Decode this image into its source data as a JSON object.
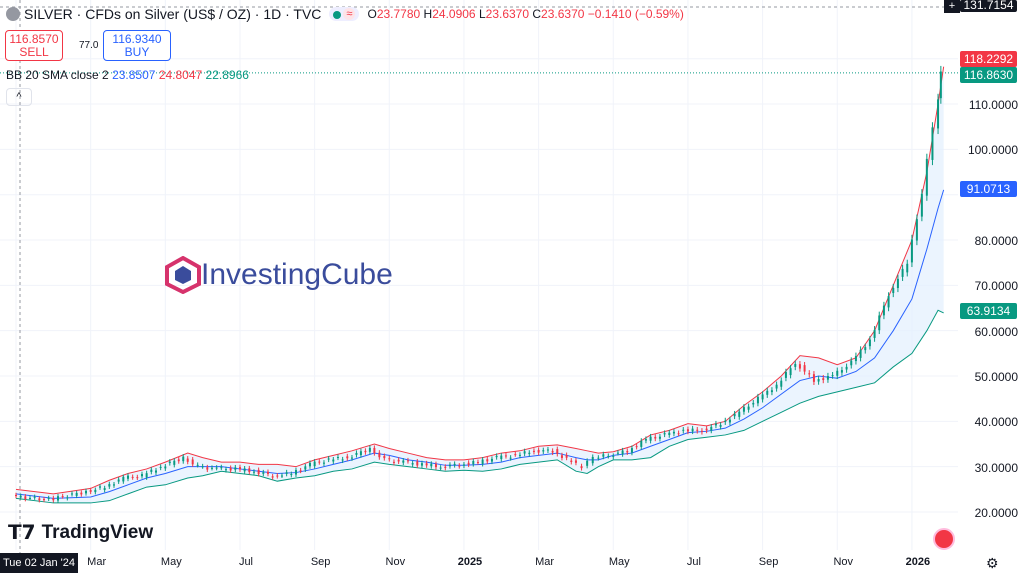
{
  "header": {
    "title": "SILVER · CFDs on Silver (US$ / OZ) · 1D · TVC",
    "o_label": "O",
    "o": "23.7780",
    "h_label": "H",
    "h": "24.0906",
    "l_label": "L",
    "l": "23.6370",
    "c_label": "C",
    "c": "23.6370",
    "change": "−0.1410 (−0.59%)"
  },
  "trade": {
    "sell_price": "116.8570",
    "sell_label": "SELL",
    "spread": "77.0",
    "buy_price": "116.9340",
    "buy_label": "BUY"
  },
  "indicator": {
    "name": "BB 20 SMA close 2",
    "basis": "23.8507",
    "upper": "24.8047",
    "lower": "22.8966"
  },
  "collapse_icon": "chevron-up-icon",
  "price_axis": {
    "labels": [
      "110.0000",
      "100.0000",
      "80.0000",
      "70.0000",
      "60.0000",
      "50.0000",
      "40.0000",
      "30.0000",
      "20.0000"
    ],
    "top_label": "131.7154",
    "tags": {
      "upper": "118.2292",
      "last": "116.8630",
      "basis": "91.0713",
      "lower": "63.9134"
    }
  },
  "time_axis": {
    "crosshair": "Tue 02 Jan '24",
    "labels": [
      "Mar",
      "May",
      "Jul",
      "Sep",
      "Nov",
      "2025",
      "Mar",
      "May",
      "Jul",
      "Sep",
      "Nov",
      "2026"
    ]
  },
  "watermark": "InvestingCube",
  "tv_logo": "TradingView",
  "colors": {
    "up": "#089981",
    "down": "#f23645",
    "upper": "#f23645",
    "basis": "#2962ff",
    "lower": "#089981",
    "fill": "#e3effd"
  },
  "chart_data": {
    "type": "line",
    "title": "SILVER · CFDs on Silver (US$ / OZ) · 1D",
    "ylim": [
      15,
      130
    ],
    "x_unit": "months since Jan 2024",
    "points": [
      [
        0,
        23.5,
        25,
        24,
        23
      ],
      [
        1,
        22.7,
        24,
        23,
        22
      ],
      [
        2,
        24.5,
        25.2,
        23.3,
        22
      ],
      [
        2.5,
        25.5,
        27,
        24.5,
        22.5
      ],
      [
        3,
        27.5,
        28.5,
        26,
        24
      ],
      [
        3.5,
        28,
        29.5,
        27.5,
        25.5
      ],
      [
        4,
        30,
        31,
        28.5,
        26
      ],
      [
        4.6,
        32,
        33,
        30,
        27.5
      ],
      [
        5,
        30,
        32,
        30,
        28
      ],
      [
        5.5,
        29.5,
        31,
        30,
        29
      ],
      [
        6,
        29.5,
        31,
        29.5,
        28.5
      ],
      [
        6.5,
        29,
        30.5,
        29,
        28
      ],
      [
        7,
        28,
        30.5,
        28.5,
        26.8
      ],
      [
        7.5,
        28.5,
        30,
        28.7,
        27.5
      ],
      [
        8,
        30.5,
        31.5,
        29.5,
        28
      ],
      [
        8.5,
        31.5,
        32.5,
        30.5,
        29
      ],
      [
        9,
        32,
        33.5,
        31.5,
        29.5
      ],
      [
        9.6,
        34,
        35,
        33,
        31
      ],
      [
        10,
        31.5,
        34,
        32.5,
        30.5
      ],
      [
        10.5,
        31,
        33,
        31.5,
        30
      ],
      [
        11,
        30.5,
        32,
        31,
        29.5
      ],
      [
        11.5,
        30,
        31.5,
        30.3,
        29
      ],
      [
        12,
        30.5,
        31.5,
        30.3,
        29.2
      ],
      [
        12.5,
        31,
        32,
        30.5,
        29
      ],
      [
        13,
        32,
        33,
        31,
        29.5
      ],
      [
        13.5,
        32.5,
        33.5,
        32,
        30.5
      ],
      [
        14,
        33.5,
        34.5,
        32.5,
        31
      ],
      [
        14.5,
        33.5,
        34.8,
        33,
        31.5
      ],
      [
        15,
        31,
        34,
        32,
        29
      ],
      [
        15.3,
        30,
        33.5,
        31.5,
        28.5
      ],
      [
        15.6,
        32,
        33,
        31.5,
        30
      ],
      [
        16,
        32.5,
        33.3,
        32.5,
        31.5
      ],
      [
        16.5,
        33.5,
        34.5,
        33,
        31.5
      ],
      [
        17,
        36,
        37,
        34.5,
        32
      ],
      [
        17.5,
        37,
        38,
        36,
        34.5
      ],
      [
        18,
        38,
        39.5,
        37.5,
        36
      ],
      [
        18.5,
        38,
        39,
        37.8,
        36.5
      ],
      [
        19,
        39.5,
        40,
        38.5,
        37
      ],
      [
        19.5,
        42,
        43.5,
        40.5,
        38
      ],
      [
        20,
        45,
        46.5,
        43,
        40
      ],
      [
        20.5,
        48,
        50,
        46,
        42
      ],
      [
        21,
        53,
        54.5,
        49,
        44
      ],
      [
        21.5,
        49,
        54,
        50,
        45.5
      ],
      [
        22,
        50,
        52.5,
        49.5,
        46.5
      ],
      [
        22.5,
        53,
        54,
        51,
        47.5
      ],
      [
        23,
        58,
        60,
        54,
        48.5
      ],
      [
        23.5,
        68,
        70,
        60,
        52
      ],
      [
        24,
        75,
        80,
        67,
        55
      ],
      [
        24.4,
        90,
        95,
        78,
        60
      ],
      [
        24.7,
        105,
        110,
        87,
        64.5
      ],
      [
        24.85,
        116.86,
        118.23,
        91.07,
        63.91
      ]
    ],
    "point_fields": [
      "month",
      "close",
      "upper",
      "basis",
      "lower"
    ]
  }
}
